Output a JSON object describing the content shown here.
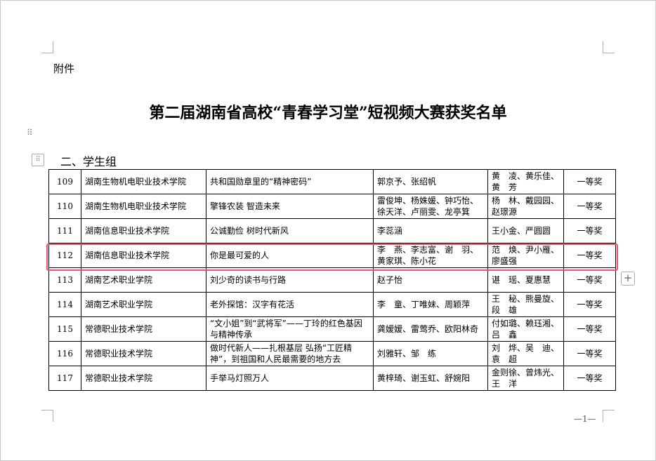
{
  "attachment_label": "附件",
  "title": "第二届湖南省高校“青春学习堂”短视频大赛获奖名单",
  "section": "二、学生组",
  "rows": [
    {
      "no": "109",
      "school": "湖南生物机电职业技术学院",
      "work": "共和国勋章里的“精神密码”",
      "students": "郭京予、张绍帆",
      "teachers": "黄　凌、黄乐佳、黄　芳",
      "award": "一等奖"
    },
    {
      "no": "110",
      "school": "湖南生物机电职业技术学院",
      "work": "擎锋农装 智造未来",
      "students": "雷俊坤、杨姝媛、钟巧怡、徐天洋、卢丽雯、龙亭箕",
      "teachers": "杨　林、戴园园、赵璟源",
      "award": "一等奖"
    },
    {
      "no": "111",
      "school": "湖南信息职业技术学院",
      "work": "公诚勤俭 树时代新风",
      "students": "李蕊涵",
      "teachers": "王小金、严圆圆",
      "award": "一等奖"
    },
    {
      "no": "112",
      "school": "湖南信息职业技术学院",
      "work": "你是最可爱的人",
      "students": "李　燕、李志富、谢　羽、黄家琪、陈小花",
      "teachers": "范　焕、尹小雁、廖盛强",
      "award": "一等奖"
    },
    {
      "no": "113",
      "school": "湖南艺术职业学院",
      "work": "刘少奇的读书与行路",
      "students": "赵子怡",
      "teachers": "谌　瑶、夏惠慧",
      "award": "一等奖"
    },
    {
      "no": "114",
      "school": "湖南艺术职业学院",
      "work": "老外探馆：汉字有花活",
      "students": "李　童、丁唯妹、周颖萍",
      "teachers": "王　秘、熊曼旋、段　雄",
      "award": "一等奖"
    },
    {
      "no": "115",
      "school": "常德职业技术学院",
      "work": "“文小姐”到“武将军”——丁玲的红色基因与精神传承",
      "students": "龚嫒嫒、雷莺乔、欧阳林奇",
      "teachers": "付如璐、赖珏湘、吕　鑫",
      "award": "一等奖"
    },
    {
      "no": "116",
      "school": "常德职业技术学院",
      "work": "做时代新人——扎根基层 弘扬“工匠精神”，到祖国和人民最需要的地方去",
      "students": "刘雅轩、邹　练",
      "teachers": "刘　烨、吴　迪、袁　超",
      "award": "一等奖"
    },
    {
      "no": "117",
      "school": "常德职业技术学院",
      "work": "手举马灯照万人",
      "students": "黄梓琦、谢玉虹、舒婉阳",
      "teachers": "金则徐、曾炜光、王　洋",
      "award": "一等奖"
    }
  ],
  "page_number": "—1—",
  "highlight_color": "#f0506e"
}
